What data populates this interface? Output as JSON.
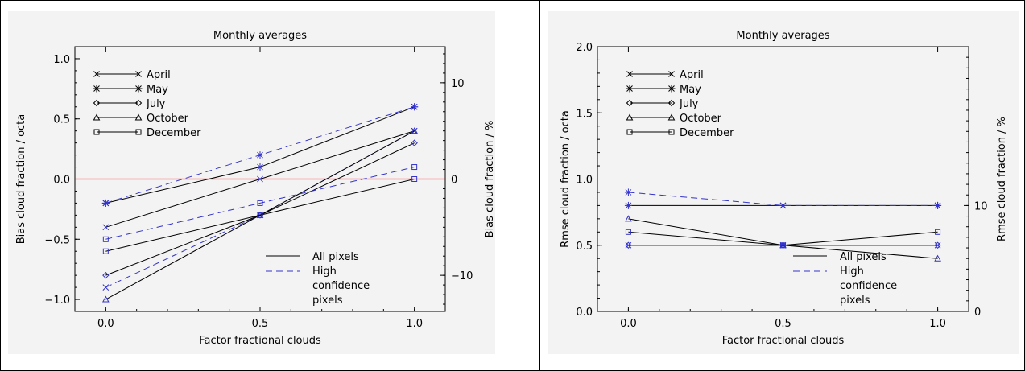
{
  "colors": {
    "black": "#000000",
    "blue": "#3333cc",
    "zero_line": "#ff0000",
    "panel_bg": "#f3f3f3"
  },
  "chart_data": [
    {
      "type": "line",
      "title": "Monthly averages",
      "xlabel": "Factor fractional clouds",
      "ylabel": "Bias cloud fraction / octa",
      "y2label": "Bias cloud fraction / %",
      "xlim": [
        -0.1,
        1.1
      ],
      "ylim": [
        -1.1,
        1.1
      ],
      "y2lim": [
        -13.75,
        13.75
      ],
      "xticks": [
        0.0,
        0.5,
        1.0
      ],
      "xtick_labels": [
        "0.0",
        "0.5",
        "1.0"
      ],
      "yticks": [
        -1.0,
        -0.5,
        0.0,
        0.5,
        1.0
      ],
      "ytick_labels": [
        "−1.0",
        "−0.5",
        "0.0",
        "0.5",
        "1.0"
      ],
      "y2ticks": [
        -10,
        0,
        10
      ],
      "y2tick_labels": [
        "−10",
        "0",
        "10"
      ],
      "hline": 0.0,
      "x": [
        0.0,
        0.5,
        1.0
      ],
      "legend_months": [
        {
          "name": "April",
          "marker": "x"
        },
        {
          "name": "May",
          "marker": "asterisk"
        },
        {
          "name": "July",
          "marker": "diamond"
        },
        {
          "name": "October",
          "marker": "triangle"
        },
        {
          "name": "December",
          "marker": "square"
        }
      ],
      "legend_styles": [
        "All pixels",
        "High",
        "confidence",
        "pixels"
      ],
      "series": [
        {
          "month": "April",
          "style": "all",
          "marker": "x",
          "values": [
            -0.4,
            0.0,
            0.4
          ]
        },
        {
          "month": "April",
          "style": "high",
          "marker": "x",
          "values": [
            -0.9,
            -0.3,
            0.4
          ]
        },
        {
          "month": "May",
          "style": "all",
          "marker": "asterisk",
          "values": [
            -0.2,
            0.1,
            0.6
          ]
        },
        {
          "month": "May",
          "style": "high",
          "marker": "asterisk",
          "values": [
            -0.2,
            0.2,
            0.6
          ]
        },
        {
          "month": "July",
          "style": "all",
          "marker": "diamond",
          "values": [
            -0.8,
            -0.3,
            0.3
          ]
        },
        {
          "month": "October",
          "style": "all",
          "marker": "triangle",
          "values": [
            -1.0,
            -0.3,
            0.4
          ]
        },
        {
          "month": "December",
          "style": "all",
          "marker": "square",
          "values": [
            -0.6,
            -0.3,
            0.0
          ]
        },
        {
          "month": "December",
          "style": "high",
          "marker": "square",
          "values": [
            -0.5,
            -0.2,
            0.1
          ]
        }
      ]
    },
    {
      "type": "line",
      "title": "Monthly averages",
      "xlabel": "Factor fractional clouds",
      "ylabel": "Rmse cloud fraction / octa",
      "y2label": "Rmse cloud fraction / %",
      "xlim": [
        -0.1,
        1.1
      ],
      "ylim": [
        0.0,
        2.0
      ],
      "y2lim": [
        0,
        25
      ],
      "xticks": [
        0.0,
        0.5,
        1.0
      ],
      "xtick_labels": [
        "0.0",
        "0.5",
        "1.0"
      ],
      "yticks": [
        0.0,
        0.5,
        1.0,
        1.5,
        2.0
      ],
      "ytick_labels": [
        "0.0",
        "0.5",
        "1.0",
        "1.5",
        "2.0"
      ],
      "y2ticks": [
        0,
        10
      ],
      "y2tick_labels": [
        "0",
        "10"
      ],
      "x": [
        0.0,
        0.5,
        1.0
      ],
      "legend_months": [
        {
          "name": "April",
          "marker": "x"
        },
        {
          "name": "May",
          "marker": "asterisk"
        },
        {
          "name": "July",
          "marker": "diamond"
        },
        {
          "name": "October",
          "marker": "triangle"
        },
        {
          "name": "December",
          "marker": "square"
        }
      ],
      "legend_styles": [
        "All pixels",
        "High",
        "confidence",
        "pixels"
      ],
      "series": [
        {
          "month": "May",
          "style": "all",
          "marker": "asterisk",
          "values": [
            0.8,
            0.8,
            0.8
          ]
        },
        {
          "month": "May",
          "style": "high",
          "marker": "asterisk",
          "values": [
            0.9,
            0.8,
            0.8
          ]
        },
        {
          "month": "October",
          "style": "all",
          "marker": "triangle",
          "values": [
            0.7,
            0.5,
            0.4
          ]
        },
        {
          "month": "December",
          "style": "all",
          "marker": "square",
          "values": [
            0.6,
            0.5,
            0.6
          ]
        },
        {
          "month": "April",
          "style": "all",
          "marker": "x",
          "values": [
            0.5,
            0.5,
            0.5
          ]
        },
        {
          "month": "July",
          "style": "all",
          "marker": "diamond",
          "values": [
            0.5,
            0.5,
            0.5
          ]
        }
      ]
    }
  ]
}
